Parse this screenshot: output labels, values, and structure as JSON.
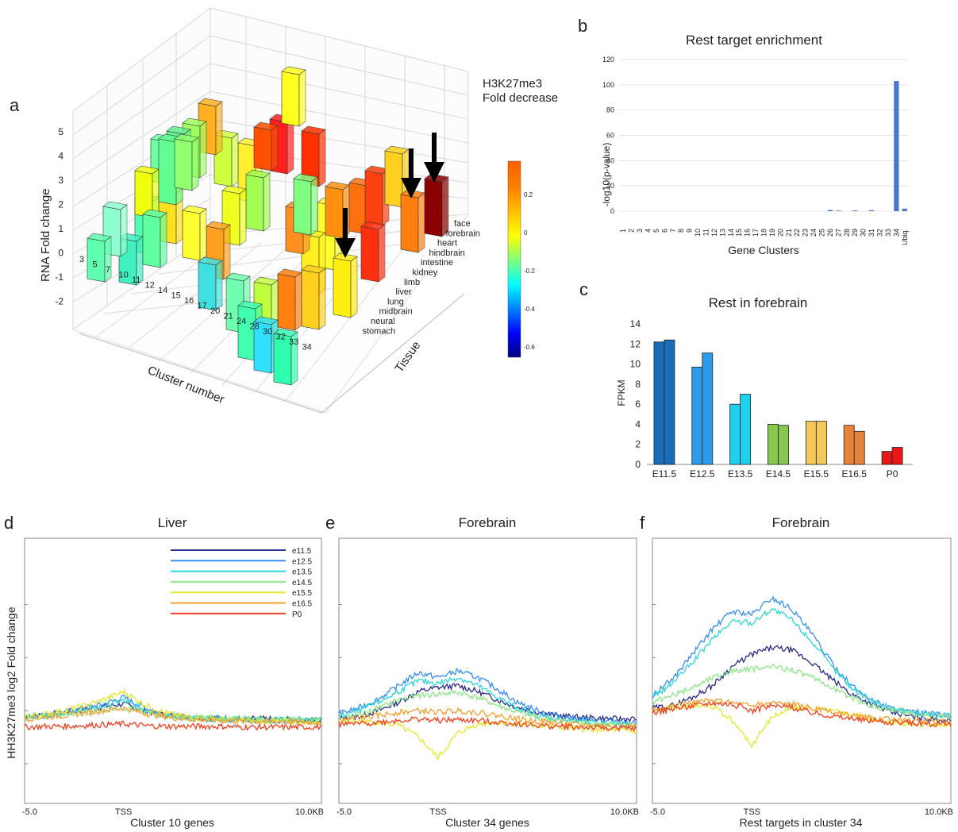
{
  "panels": {
    "a": {
      "letter": "a",
      "ylabel": "RNA Fold change",
      "xlabel": "Cluster number",
      "zlabel": "Tissue",
      "colorbar_title": [
        "H3K27me3",
        "Fold decrease"
      ],
      "colorbar_ticks": [
        "0.2",
        "0",
        "-0.2",
        "-0.4",
        "-0.6"
      ],
      "y_ticks": [
        "5",
        "4",
        "3",
        "2",
        "1",
        "0",
        "-1",
        "-2"
      ],
      "clusters": [
        "3",
        "5",
        "7",
        "10",
        "11",
        "12",
        "14",
        "15",
        "16",
        "17",
        "20",
        "21",
        "24",
        "28",
        "30",
        "32",
        "33",
        "34"
      ],
      "tissues": [
        "face",
        "forebrain",
        "heart",
        "hindbrain",
        "intestine",
        "kidney",
        "limb",
        "liver",
        "lung",
        "midbrain",
        "neural",
        "stomach"
      ]
    },
    "b": {
      "letter": "b",
      "title": "Rest target enrichment",
      "ylabel": "-log10(p-value)",
      "xlabel": "Gene Clusters"
    },
    "c": {
      "letter": "c",
      "title": "Rest in forebrain",
      "ylabel": "FPKM"
    },
    "d": {
      "letter": "d",
      "title": "Liver",
      "xlabel": "Cluster 10 genes",
      "ylabel": "HH3K27me3 log2 Fold change",
      "xticks": [
        "-5.0",
        "TSS",
        "10.0KB"
      ],
      "legend": [
        "e11.5",
        "e12.5",
        "e13.5",
        "e14.5",
        "e15.5",
        "e16.5",
        "P0"
      ]
    },
    "e": {
      "letter": "e",
      "title": "Forebrain",
      "xlabel": "Cluster 34 genes",
      "xticks": [
        "-5.0",
        "TSS",
        "10.0KB"
      ]
    },
    "f": {
      "letter": "f",
      "title": "Forebrain",
      "xlabel": "Rest targets in cluster 34",
      "xticks": [
        "-5.0",
        "TSS",
        "10.0KB"
      ]
    }
  },
  "colors": {
    "e11.5": "#2b2b8c",
    "e12.5": "#3a8ff0",
    "e13.5": "#2fd6d6",
    "e14.5": "#8ee88a",
    "e15.5": "#e6e62a",
    "e16.5": "#f5a030",
    "P0": "#f04020"
  },
  "chart_data": [
    {
      "type": "bar",
      "panel": "b",
      "title": "Rest target enrichment",
      "xlabel": "Gene Clusters",
      "ylabel": "-log10(p-value)",
      "ylim": [
        0,
        120
      ],
      "yticks": [
        0,
        20,
        40,
        60,
        80,
        100,
        120
      ],
      "categories": [
        "1",
        "2",
        "3",
        "4",
        "5",
        "6",
        "7",
        "8",
        "9",
        "10",
        "11",
        "12",
        "13",
        "14",
        "15",
        "16",
        "17",
        "18",
        "19",
        "20",
        "21",
        "22",
        "23",
        "24",
        "25",
        "26",
        "27",
        "28",
        "29",
        "30",
        "31",
        "32",
        "33",
        "34",
        "Ubiq."
      ],
      "values": [
        0,
        0,
        0,
        0,
        0,
        0,
        0,
        0,
        0,
        0,
        0,
        0,
        0,
        0,
        0,
        0,
        0,
        0,
        0,
        0,
        0,
        0,
        0,
        0,
        0,
        1,
        0.5,
        0,
        0.6,
        0,
        0.8,
        0,
        0,
        103,
        2
      ],
      "color": "#4a78c8"
    },
    {
      "type": "bar",
      "panel": "c",
      "title": "Rest in forebrain",
      "ylabel": "FPKM",
      "ylim": [
        0,
        14
      ],
      "yticks": [
        0,
        2,
        4,
        6,
        8,
        10,
        12,
        14
      ],
      "categories": [
        "E11.5",
        "E12.5",
        "E13.5",
        "E14.5",
        "E15.5",
        "E16.5",
        "P0"
      ],
      "series": [
        {
          "values": [
            12.2,
            9.7,
            6.0,
            4.0,
            4.3,
            3.9,
            1.3
          ]
        },
        {
          "values": [
            12.4,
            11.1,
            7.0,
            3.9,
            4.3,
            3.3,
            1.7
          ]
        }
      ],
      "colors": [
        "#1a6bb8",
        "#2f9ae8",
        "#1fd0ee",
        "#88c850",
        "#f5c85a",
        "#e8843a",
        "#e81818"
      ]
    },
    {
      "type": "line",
      "panel": "d",
      "title": "Liver",
      "xlabel": "Cluster 10 genes",
      "ylabel": "HH3K27me3 log2 Fold change",
      "x": [
        -5,
        -4,
        -3,
        -2,
        -1,
        0,
        1,
        2,
        3,
        4,
        5,
        6,
        7,
        8,
        9,
        10
      ],
      "series": [
        {
          "name": "e11.5",
          "values": [
            0.45,
            0.47,
            0.5,
            0.53,
            0.57,
            0.6,
            0.52,
            0.47,
            0.45,
            0.44,
            0.43,
            0.42,
            0.42,
            0.41,
            0.41,
            0.4
          ]
        },
        {
          "name": "e12.5",
          "values": [
            0.44,
            0.46,
            0.5,
            0.55,
            0.6,
            0.68,
            0.56,
            0.48,
            0.44,
            0.42,
            0.41,
            0.4,
            0.4,
            0.4,
            0.39,
            0.39
          ]
        },
        {
          "name": "e13.5",
          "values": [
            0.44,
            0.46,
            0.49,
            0.52,
            0.57,
            0.64,
            0.54,
            0.47,
            0.44,
            0.43,
            0.42,
            0.42,
            0.41,
            0.41,
            0.41,
            0.4
          ]
        },
        {
          "name": "e14.5",
          "values": [
            0.43,
            0.45,
            0.47,
            0.5,
            0.53,
            0.56,
            0.5,
            0.46,
            0.44,
            0.43,
            0.42,
            0.42,
            0.42,
            0.41,
            0.41,
            0.41
          ]
        },
        {
          "name": "e15.5",
          "values": [
            0.45,
            0.48,
            0.52,
            0.58,
            0.65,
            0.75,
            0.6,
            0.5,
            0.45,
            0.43,
            0.41,
            0.4,
            0.39,
            0.39,
            0.38,
            0.38
          ]
        },
        {
          "name": "e16.5",
          "values": [
            0.42,
            0.44,
            0.46,
            0.49,
            0.52,
            0.55,
            0.49,
            0.45,
            0.42,
            0.41,
            0.4,
            0.39,
            0.39,
            0.39,
            0.38,
            0.38
          ]
        },
        {
          "name": "P0",
          "values": [
            0.32,
            0.33,
            0.33,
            0.34,
            0.35,
            0.36,
            0.34,
            0.33,
            0.33,
            0.33,
            0.33,
            0.32,
            0.32,
            0.32,
            0.32,
            0.32
          ]
        }
      ]
    },
    {
      "type": "line",
      "panel": "e",
      "title": "Forebrain",
      "xlabel": "Cluster 34 genes",
      "x": [
        -5,
        -4,
        -3,
        -2,
        -1,
        0,
        1,
        2,
        3,
        4,
        5,
        6,
        7,
        8,
        9,
        10
      ],
      "series": [
        {
          "name": "e11.5",
          "values": [
            0.42,
            0.45,
            0.52,
            0.62,
            0.75,
            0.8,
            0.82,
            0.75,
            0.65,
            0.56,
            0.5,
            0.46,
            0.44,
            0.43,
            0.42,
            0.42
          ]
        },
        {
          "name": "e12.5",
          "values": [
            0.48,
            0.55,
            0.66,
            0.82,
            0.98,
            0.92,
            1.0,
            0.92,
            0.78,
            0.62,
            0.52,
            0.46,
            0.42,
            0.4,
            0.38,
            0.37
          ]
        },
        {
          "name": "e13.5",
          "values": [
            0.45,
            0.52,
            0.62,
            0.75,
            0.88,
            0.85,
            0.92,
            0.82,
            0.68,
            0.55,
            0.46,
            0.42,
            0.39,
            0.37,
            0.36,
            0.35
          ]
        },
        {
          "name": "e14.5",
          "values": [
            0.42,
            0.47,
            0.55,
            0.65,
            0.7,
            0.72,
            0.74,
            0.68,
            0.58,
            0.5,
            0.44,
            0.4,
            0.38,
            0.36,
            0.35,
            0.34
          ]
        },
        {
          "name": "e15.5",
          "values": [
            0.38,
            0.39,
            0.38,
            0.34,
            0.2,
            -0.05,
            0.25,
            0.36,
            0.38,
            0.36,
            0.34,
            0.32,
            0.3,
            0.29,
            0.28,
            0.27
          ]
        },
        {
          "name": "e16.5",
          "values": [
            0.4,
            0.43,
            0.46,
            0.5,
            0.52,
            0.5,
            0.52,
            0.5,
            0.46,
            0.42,
            0.39,
            0.37,
            0.35,
            0.34,
            0.33,
            0.33
          ]
        },
        {
          "name": "P0",
          "values": [
            0.35,
            0.36,
            0.38,
            0.4,
            0.42,
            0.4,
            0.41,
            0.4,
            0.38,
            0.36,
            0.34,
            0.33,
            0.32,
            0.31,
            0.31,
            0.3
          ]
        }
      ]
    },
    {
      "type": "line",
      "panel": "f",
      "title": "Forebrain",
      "xlabel": "Rest targets in cluster 34",
      "x": [
        -5,
        -4,
        -3,
        -2,
        -1,
        0,
        1,
        2,
        3,
        4,
        5,
        6,
        7,
        8,
        9,
        10
      ],
      "series": [
        {
          "name": "e11.5",
          "values": [
            0.55,
            0.58,
            0.68,
            0.82,
            1.05,
            1.2,
            1.28,
            1.25,
            1.1,
            0.9,
            0.72,
            0.6,
            0.5,
            0.45,
            0.42,
            0.4
          ]
        },
        {
          "name": "e12.5",
          "values": [
            0.7,
            0.9,
            1.2,
            1.5,
            1.72,
            1.68,
            1.88,
            1.75,
            1.45,
            1.1,
            0.82,
            0.65,
            0.55,
            0.5,
            0.48,
            0.45
          ]
        },
        {
          "name": "e13.5",
          "values": [
            0.68,
            0.85,
            1.1,
            1.38,
            1.6,
            1.58,
            1.75,
            1.62,
            1.36,
            1.05,
            0.8,
            0.64,
            0.55,
            0.5,
            0.48,
            0.46
          ]
        },
        {
          "name": "e14.5",
          "values": [
            0.62,
            0.7,
            0.8,
            0.92,
            1.0,
            1.02,
            1.05,
            1.02,
            0.92,
            0.8,
            0.68,
            0.58,
            0.52,
            0.48,
            0.46,
            0.45
          ]
        },
        {
          "name": "e15.5",
          "values": [
            0.52,
            0.55,
            0.58,
            0.58,
            0.4,
            0.1,
            0.45,
            0.55,
            0.55,
            0.52,
            0.48,
            0.42,
            0.38,
            0.36,
            0.35,
            0.35
          ]
        },
        {
          "name": "e16.5",
          "values": [
            0.55,
            0.58,
            0.62,
            0.64,
            0.62,
            0.58,
            0.62,
            0.6,
            0.55,
            0.5,
            0.46,
            0.43,
            0.41,
            0.4,
            0.39,
            0.38
          ]
        },
        {
          "name": "P0",
          "values": [
            0.5,
            0.54,
            0.58,
            0.62,
            0.6,
            0.52,
            0.58,
            0.56,
            0.5,
            0.46,
            0.42,
            0.4,
            0.38,
            0.37,
            0.36,
            0.35
          ]
        }
      ]
    }
  ]
}
